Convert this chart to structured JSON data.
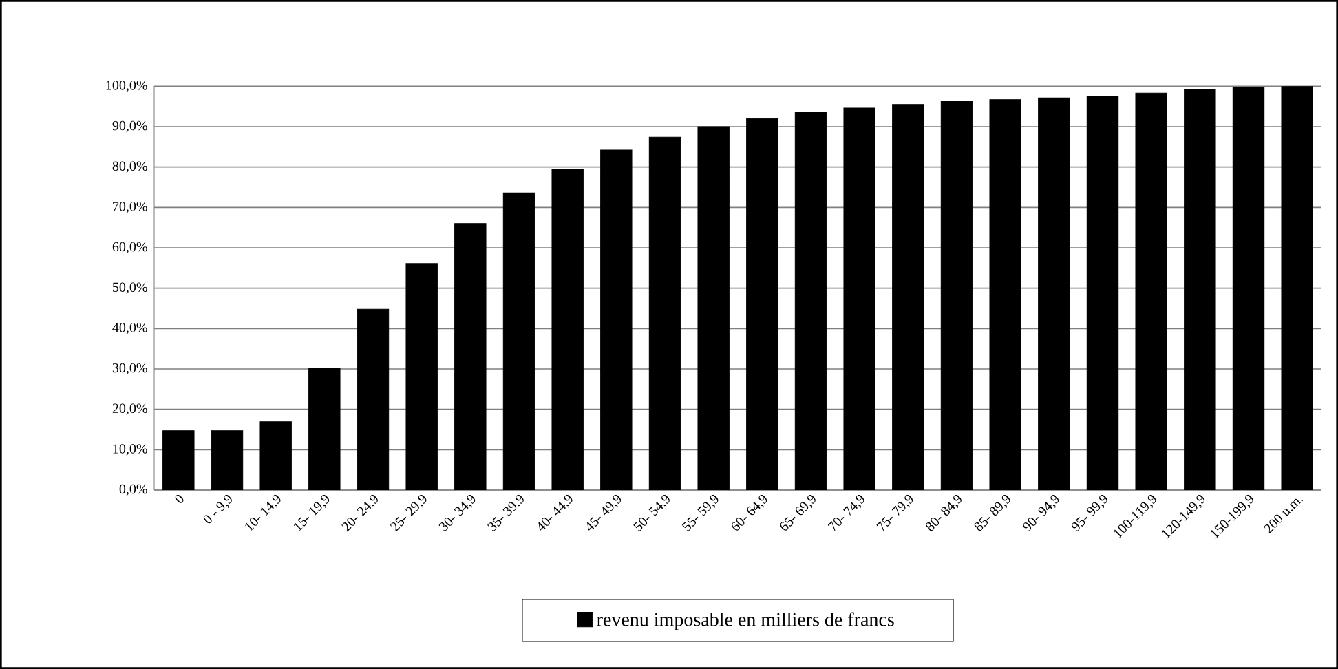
{
  "chart_data": {
    "type": "bar",
    "categories": [
      "0",
      "0 -  9,9",
      "10- 14,9",
      "15- 19,9",
      "20- 24,9",
      "25- 29,9",
      "30- 34,9",
      "35- 39,9",
      "40- 44,9",
      "45- 49,9",
      "50- 54,9",
      "55- 59,9",
      "60- 64,9",
      "65- 69,9",
      "70- 74,9",
      "75- 79,9",
      "80- 84,9",
      "85- 89,9",
      "90- 94,9",
      "95- 99,9",
      "100-119,9",
      "120-149,9",
      "150-199,9",
      "200 u.m."
    ],
    "series": [
      {
        "name": "revenu imposable en milliers de francs",
        "color": "#000000",
        "values": [
          14.7,
          14.7,
          16.9,
          30.2,
          44.8,
          56.1,
          66.0,
          73.6,
          79.5,
          84.2,
          87.4,
          90.0,
          92.0,
          93.5,
          94.6,
          95.5,
          96.2,
          96.7,
          97.1,
          97.5,
          98.3,
          99.3,
          99.7,
          100.0
        ]
      }
    ],
    "ylim": [
      0,
      100
    ],
    "yticks": [
      {
        "value": 0,
        "label": "0,0%"
      },
      {
        "value": 10,
        "label": "10,0%"
      },
      {
        "value": 20,
        "label": "20,0%"
      },
      {
        "value": 30,
        "label": "30,0%"
      },
      {
        "value": 40,
        "label": "40,0%"
      },
      {
        "value": 50,
        "label": "50,0%"
      },
      {
        "value": 60,
        "label": "60,0%"
      },
      {
        "value": 70,
        "label": "70,0%"
      },
      {
        "value": 80,
        "label": "80,0%"
      },
      {
        "value": 90,
        "label": "90,0%"
      },
      {
        "value": 100,
        "label": "100,0%"
      }
    ],
    "grid": "y",
    "legend": "bottom"
  }
}
